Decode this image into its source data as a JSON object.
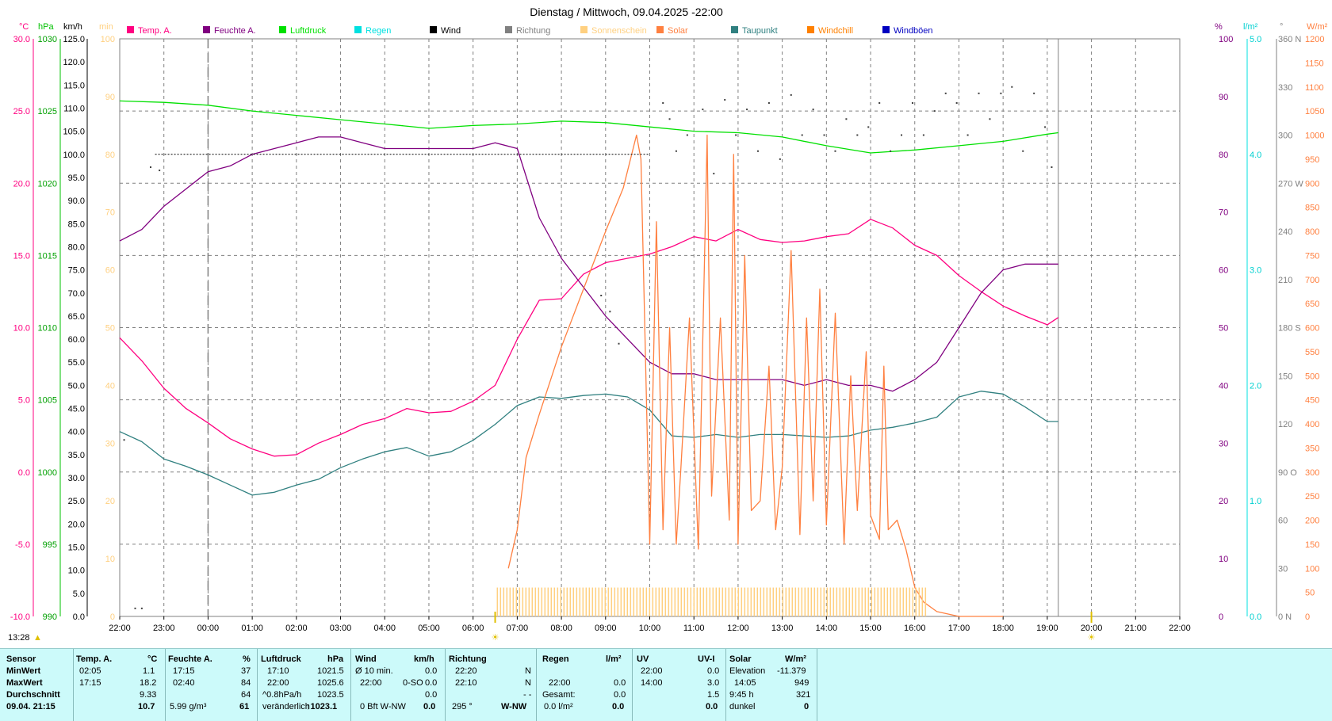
{
  "header": {
    "title": "Dienstag / Mittwoch, 09.04.2025  -22:00",
    "corner_time": "13:28"
  },
  "colors": {
    "temp": "#ff0080",
    "humidity": "#800080",
    "pressure": "#00e000",
    "rain": "#00e0e0",
    "wind": "#000000",
    "direction": "#808080",
    "sunshine": "#ffd080",
    "solar": "#ff8040",
    "dewpoint": "#308080",
    "windchill": "#ff8000",
    "gusts": "#0000c0",
    "stats_bg": "#ccfafa"
  },
  "chart_data": {
    "type": "line",
    "title": "Dienstag / Mittwoch, 09.04.2025  -22:00",
    "legend": [
      {
        "name": "Temp. A.",
        "color": "#ff0080"
      },
      {
        "name": "Feuchte A.",
        "color": "#800080"
      },
      {
        "name": "Luftdruck",
        "color": "#00e000"
      },
      {
        "name": "Regen",
        "color": "#00e0e0"
      },
      {
        "name": "Wind",
        "color": "#000000"
      },
      {
        "name": "Richtung",
        "color": "#808080"
      },
      {
        "name": "Sonnenschein",
        "color": "#ffd080"
      },
      {
        "name": "Solar",
        "color": "#ff8040"
      },
      {
        "name": "Taupunkt",
        "color": "#308080"
      },
      {
        "name": "Windchill",
        "color": "#ff8000"
      },
      {
        "name": "Windböen",
        "color": "#0000c0"
      }
    ],
    "x_ticks": [
      "22:00",
      "23:00",
      "00:00",
      "01:00",
      "02:00",
      "03:00",
      "04:00",
      "05:00",
      "06:00",
      "07:00",
      "08:00",
      "09:00",
      "10:00",
      "11:00",
      "12:00",
      "13:00",
      "14:00",
      "15:00",
      "16:00",
      "17:00",
      "18:00",
      "19:00",
      "20:00",
      "21:00",
      "22:00"
    ],
    "xlim": [
      0,
      24
    ],
    "axes": {
      "temp": {
        "unit": "°C",
        "ticks": [
          "30.0",
          "25.0",
          "20.0",
          "15.0",
          "10.0",
          "5.0",
          "0.0",
          "-5.0",
          "-10.0"
        ],
        "ylim": [
          -10,
          30
        ]
      },
      "pressure": {
        "unit": "hPa",
        "ticks": [
          "1030",
          "1025",
          "1020",
          "1015",
          "1010",
          "1005",
          "1000",
          "995",
          "990"
        ],
        "ylim": [
          990,
          1030
        ]
      },
      "wind": {
        "unit": "km/h",
        "ticks": [
          "125.0",
          "120.0",
          "115.0",
          "110.0",
          "105.0",
          "100.0",
          "95.0",
          "90.0",
          "85.0",
          "80.0",
          "75.0",
          "70.0",
          "65.0",
          "60.0",
          "55.0",
          "50.0",
          "45.0",
          "40.0",
          "35.0",
          "30.0",
          "25.0",
          "20.0",
          "15.0",
          "10.0",
          "5.0",
          "0.0"
        ],
        "ylim": [
          0,
          125
        ]
      },
      "sunshine": {
        "unit": "min",
        "ticks": [
          "100",
          "90",
          "80",
          "70",
          "60",
          "50",
          "40",
          "30",
          "20",
          "10",
          "0"
        ],
        "ylim": [
          0,
          100
        ]
      },
      "humidity": {
        "unit": "%",
        "ticks": [
          "100",
          "90",
          "80",
          "70",
          "60",
          "50",
          "40",
          "30",
          "20",
          "10",
          "0"
        ],
        "ylim": [
          0,
          100
        ]
      },
      "rain": {
        "unit": "l/m²",
        "ticks": [
          "5.0",
          "4.0",
          "3.0",
          "2.0",
          "1.0",
          "0.0"
        ],
        "ylim": [
          0,
          5
        ]
      },
      "direction": {
        "unit": "°",
        "ticks": [
          "360 N",
          "330",
          "300",
          "270 W",
          "240",
          "210",
          "180 S",
          "150",
          "120",
          "90 O",
          "60",
          "30",
          "0 N"
        ],
        "ylim": [
          0,
          360
        ]
      },
      "solar": {
        "unit": "W/m²",
        "ticks": [
          "1200",
          "1150",
          "1100",
          "1050",
          "1000",
          "950",
          "900",
          "850",
          "800",
          "750",
          "700",
          "650",
          "600",
          "550",
          "500",
          "450",
          "400",
          "350",
          "300",
          "250",
          "200",
          "150",
          "100",
          "50",
          "0"
        ],
        "ylim": [
          0,
          1200
        ]
      }
    },
    "series": [
      {
        "name": "Temp. A.",
        "axis": "temp",
        "x": [
          0,
          0.5,
          1,
          1.5,
          2,
          2.5,
          3,
          3.5,
          4,
          4.5,
          5,
          5.5,
          6,
          6.5,
          7,
          7.5,
          8,
          8.5,
          9,
          9.5,
          10,
          10.5,
          11,
          11.5,
          12,
          12.5,
          13,
          13.5,
          14,
          14.5,
          15,
          15.5,
          16,
          16.5,
          17,
          17.5,
          18,
          18.5,
          19,
          19.5,
          20,
          20.5,
          21,
          21.25
        ],
        "y": [
          9.3,
          7.7,
          5.8,
          4.4,
          3.4,
          2.3,
          1.6,
          1.1,
          1.2,
          2.0,
          2.6,
          3.3,
          3.7,
          4.4,
          4.1,
          4.2,
          4.9,
          6.0,
          9.2,
          11.9,
          12.0,
          13.7,
          14.5,
          14.8,
          15.1,
          15.6,
          16.3,
          16.0,
          16.8,
          16.1,
          15.9,
          16.0,
          16.3,
          16.5,
          17.5,
          16.9,
          15.7,
          15.0,
          13.6,
          12.5,
          11.5,
          10.8,
          10.2,
          10.7
        ]
      },
      {
        "name": "Feuchte A.",
        "axis": "humidity",
        "x": [
          0,
          0.5,
          1,
          1.5,
          2,
          2.5,
          3,
          3.5,
          4,
          4.5,
          5,
          5.5,
          6,
          6.5,
          7,
          7.5,
          8,
          8.5,
          9,
          9.5,
          10,
          10.5,
          11,
          11.5,
          12,
          12.5,
          13,
          13.5,
          14,
          14.5,
          15,
          15.5,
          16,
          16.5,
          17,
          17.5,
          18,
          18.5,
          19,
          19.5,
          20,
          20.5,
          21,
          21.25
        ],
        "y": [
          65,
          67,
          71,
          74,
          77,
          78,
          80,
          81,
          82,
          83,
          83,
          82,
          81,
          81,
          81,
          81,
          81,
          82,
          81,
          69,
          62,
          57,
          52,
          48,
          44,
          42,
          42,
          41,
          41,
          41,
          41,
          40,
          41,
          40,
          40,
          39,
          41,
          44,
          50,
          56,
          60,
          61,
          61,
          61
        ]
      },
      {
        "name": "Luftdruck",
        "axis": "pressure",
        "x": [
          0,
          1,
          2,
          3,
          4,
          5,
          6,
          7,
          8,
          9,
          10,
          11,
          12,
          13,
          14,
          15,
          16,
          17,
          18,
          19,
          20,
          21,
          21.25
        ],
        "y": [
          1025.7,
          1025.6,
          1025.4,
          1025.0,
          1024.7,
          1024.4,
          1024.1,
          1023.8,
          1024.0,
          1024.1,
          1024.3,
          1024.2,
          1023.9,
          1023.6,
          1023.5,
          1023.2,
          1022.6,
          1022.1,
          1022.3,
          1022.6,
          1022.9,
          1023.4,
          1023.5
        ]
      },
      {
        "name": "Taupunkt",
        "axis": "temp",
        "x": [
          0,
          0.5,
          1,
          1.5,
          2,
          2.5,
          3,
          3.5,
          4,
          4.5,
          5,
          5.5,
          6,
          6.5,
          7,
          7.5,
          8,
          8.5,
          9,
          9.5,
          10,
          10.5,
          11,
          11.5,
          12,
          12.5,
          13,
          13.5,
          14,
          14.5,
          15,
          15.5,
          16,
          16.5,
          17,
          17.5,
          18,
          18.5,
          19,
          19.5,
          20,
          20.5,
          21,
          21.25
        ],
        "y": [
          2.8,
          2.1,
          0.9,
          0.4,
          -0.2,
          -0.9,
          -1.6,
          -1.4,
          -0.9,
          -0.5,
          0.3,
          0.9,
          1.4,
          1.7,
          1.1,
          1.4,
          2.2,
          3.3,
          4.6,
          5.2,
          5.1,
          5.3,
          5.4,
          5.2,
          4.3,
          2.5,
          2.4,
          2.6,
          2.4,
          2.6,
          2.6,
          2.5,
          2.4,
          2.5,
          2.9,
          3.1,
          3.4,
          3.8,
          5.2,
          5.6,
          5.4,
          4.5,
          3.5,
          3.5
        ]
      },
      {
        "name": "Solar",
        "axis": "solar",
        "x": [
          8.8,
          9.0,
          9.2,
          9.5,
          10,
          10.5,
          11,
          11.4,
          11.7,
          11.8,
          12.0,
          12.15,
          12.3,
          12.45,
          12.6,
          12.7,
          12.9,
          13.1,
          13.3,
          13.4,
          13.6,
          13.8,
          13.9,
          14.0,
          14.15,
          14.3,
          14.5,
          14.7,
          14.85,
          15.0,
          15.2,
          15.4,
          15.55,
          15.7,
          15.85,
          16.0,
          16.2,
          16.4,
          16.55,
          16.7,
          16.9,
          17.0,
          17.2,
          17.3,
          17.4,
          17.6,
          17.8,
          18.0,
          18.2,
          18.5,
          19.0,
          19.5,
          20.0
        ],
        "y": [
          100,
          180,
          330,
          420,
          560,
          680,
          800,
          890,
          1000,
          950,
          150,
          820,
          180,
          600,
          150,
          300,
          620,
          140,
          1000,
          250,
          620,
          200,
          960,
          150,
          750,
          220,
          240,
          520,
          180,
          310,
          760,
          170,
          620,
          240,
          680,
          190,
          630,
          150,
          500,
          220,
          550,
          210,
          160,
          520,
          180,
          200,
          140,
          60,
          30,
          10,
          0,
          0,
          0
        ]
      },
      {
        "name": "Sonnenschein",
        "axis": "sunshine",
        "x": [
          8.55,
          18.25
        ],
        "y": [
          5,
          5
        ]
      },
      {
        "name": "Richtung",
        "axis": "direction",
        "style": "dots",
        "x": [
          0.1,
          0.35,
          0.5,
          0.7,
          0.9,
          12.3,
          12.45,
          12.6,
          12.85,
          13.2,
          13.45,
          13.7,
          13.95,
          14.2,
          14.45,
          14.7,
          14.95,
          15.2,
          15.45,
          15.7,
          15.95,
          16.2,
          16.45,
          16.7,
          16.95,
          17.2,
          17.45,
          17.7,
          17.95,
          18.2,
          18.45,
          18.7,
          18.95,
          19.2,
          19.45,
          19.7,
          19.95,
          20.2,
          20.45,
          20.7,
          20.95,
          21.1,
          10.9,
          11.1,
          11.3
        ],
        "y": [
          110,
          5,
          5,
          280,
          278,
          320,
          310,
          290,
          300,
          316,
          276,
          322,
          300,
          316,
          290,
          320,
          285,
          325,
          300,
          316,
          300,
          290,
          310,
          300,
          305,
          320,
          290,
          300,
          320,
          300,
          315,
          326,
          320,
          300,
          326,
          310,
          326,
          330,
          290,
          326,
          305,
          280,
          200,
          190,
          170
        ]
      }
    ]
  },
  "markers": {
    "left_arrow_label": "▲",
    "sunrise_label": "☀",
    "sunset_label": "☀"
  },
  "stats": {
    "col1": {
      "header": "Sensor",
      "rows": [
        "MinWert",
        "MaxWert",
        "Durchschnitt",
        "09.04.  21:15"
      ]
    },
    "temp": {
      "header": "Temp. A.",
      "unit": "°C",
      "min_time": "02:05",
      "min": "1.1",
      "max_time": "17:15",
      "max": "18.2",
      "avg": "9.33",
      "current": "10.7"
    },
    "humidity": {
      "header": "Feuchte A.",
      "unit": "%",
      "min_time": "17:15",
      "min": "37",
      "max_time": "02:40",
      "max": "84",
      "avg": "64",
      "abs": "5.99 g/m³",
      "current": "61"
    },
    "pressure": {
      "header": "Luftdruck",
      "unit": "hPa",
      "min_time": "17:10",
      "min": "1021.5",
      "max_time": "22:00",
      "max": "1025.6",
      "trend": "^0.8hPa/h",
      "avg": "1023.5",
      "state": "veränderlich",
      "current": "↑1023.1"
    },
    "wind": {
      "header": "Wind",
      "unit": "km/h",
      "avg10_label": "Ø 10 min.",
      "avg10": "0.0",
      "max_time": "22:00",
      "max_dir": "0-SO",
      "max": "0.0",
      "avg": "0.0",
      "bft": "0 Bft W-NW",
      "current": "0.0"
    },
    "direction": {
      "header": "Richtung",
      "t1": "22:20",
      "d1": "N",
      "t2": "22:10",
      "d2": "N",
      "avg": "- -",
      "deg": "295 °",
      "current": "W-NW"
    },
    "rain": {
      "header": "Regen",
      "unit": "l/m²",
      "max_time": "22:00",
      "max": "0.0",
      "total_label": "Gesamt:",
      "total": "0.0",
      "rate": "0.0 l/m²",
      "current": "0.0"
    },
    "uv": {
      "header": "UV",
      "unit": "UV-I",
      "t1": "22:00",
      "min": "0.0",
      "t2": "14:00",
      "max": "3.0",
      "avg": "1.5",
      "current": "0.0"
    },
    "solar": {
      "header": "Solar",
      "unit": "W/m²",
      "elev_label": "Elevation",
      "elev": "-11.379",
      "max_time": "14:05",
      "max": "949",
      "sun_hours": "9:45 h",
      "avg": "321",
      "state": "dunkel",
      "current": "0"
    }
  }
}
